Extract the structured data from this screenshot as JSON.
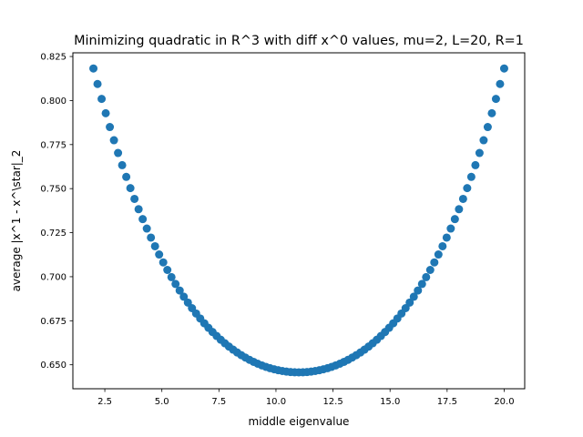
{
  "chart_data": {
    "type": "scatter",
    "title": "Minimizing quadratic in R^3 with diff x^0 values, mu=2, L=20, R=1",
    "xlabel": "middle eigenvalue",
    "ylabel": "average |x^1 - x^\\star|_2",
    "xlim": [
      1.1,
      20.9
    ],
    "ylim": [
      0.6364,
      0.8271
    ],
    "xticks": [
      2.5,
      5.0,
      7.5,
      10.0,
      12.5,
      15.0,
      17.5,
      20.0
    ],
    "yticks": [
      0.65,
      0.675,
      0.7,
      0.725,
      0.75,
      0.775,
      0.8,
      0.825
    ],
    "xtick_labels": [
      "2.5",
      "5.0",
      "7.5",
      "10.0",
      "12.5",
      "15.0",
      "17.5",
      "20.0"
    ],
    "ytick_labels": [
      "0.650",
      "0.675",
      "0.700",
      "0.725",
      "0.750",
      "0.775",
      "0.800",
      "0.825"
    ],
    "grid": false,
    "marker_color": "#1f77b4",
    "series": [
      {
        "x_start": 2.0,
        "x_end": 20.0,
        "x_step": 0.18,
        "y_min": 0.6457,
        "x_at_min": 11.0,
        "y_at_ends": 0.8182
      }
    ]
  }
}
